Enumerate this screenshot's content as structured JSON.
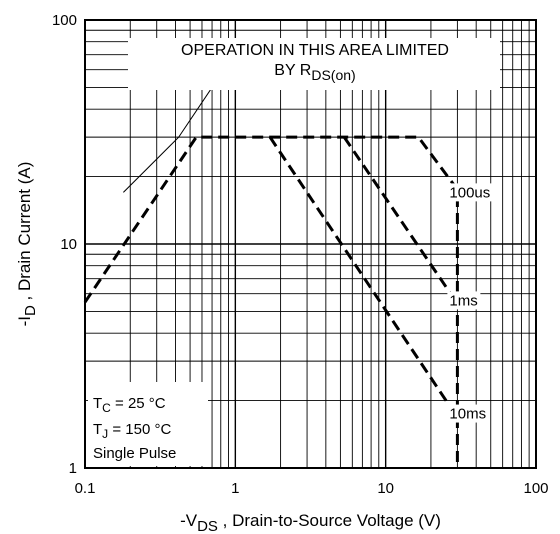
{
  "chart_data": {
    "type": "line",
    "x_scale": "log",
    "y_scale": "log",
    "xlim": [
      0.1,
      100
    ],
    "ylim": [
      1,
      100
    ],
    "grid": true,
    "x_ticks": [
      {
        "value": 0.1,
        "label": "0.1"
      },
      {
        "value": 1,
        "label": "1"
      },
      {
        "value": 10,
        "label": "10"
      },
      {
        "value": 100,
        "label": "100"
      }
    ],
    "y_ticks": [
      {
        "value": 1,
        "label": "1"
      },
      {
        "value": 10,
        "label": "10"
      },
      {
        "value": 100,
        "label": "100"
      }
    ],
    "xlabel": {
      "prefix": "-V",
      "sub": "DS",
      "rest": " , Drain-to-Source Voltage (V)"
    },
    "ylabel": {
      "prefix": "-I",
      "sub": "D",
      "rest": " , Drain Current (A)"
    },
    "series": [
      {
        "name": "100us",
        "x": [
          0.1,
          0.55,
          16.5,
          30,
          30
        ],
        "y": [
          5.5,
          30,
          30,
          17.5,
          1
        ]
      },
      {
        "name": "1ms",
        "x": [
          5.3,
          28
        ],
        "y": [
          30,
          5.8
        ]
      },
      {
        "name": "10ms",
        "x": [
          1.7,
          28
        ],
        "y": [
          30,
          1.8
        ]
      }
    ],
    "rds_limit_line": {
      "x": [
        0.18,
        0.42
      ],
      "y": [
        17,
        30
      ]
    },
    "annotations": [
      {
        "text": "100us",
        "x": 30,
        "y": 17
      },
      {
        "text": "1ms",
        "x": 30,
        "y": 5.6
      },
      {
        "text": "10ms",
        "x": 30,
        "y": 1.75
      }
    ],
    "limit_note": {
      "line1": "OPERATION IN THIS AREA LIMITED",
      "line2_prefix": "BY R",
      "line2_sub": "DS(on)"
    },
    "conditions": [
      {
        "prefix": "T",
        "sub": "C",
        "rest": " = 25 °C"
      },
      {
        "prefix": "T",
        "sub": "J",
        "rest": " = 150 °C"
      },
      {
        "prefix": "",
        "sub": "",
        "rest": "Single Pulse"
      }
    ]
  }
}
